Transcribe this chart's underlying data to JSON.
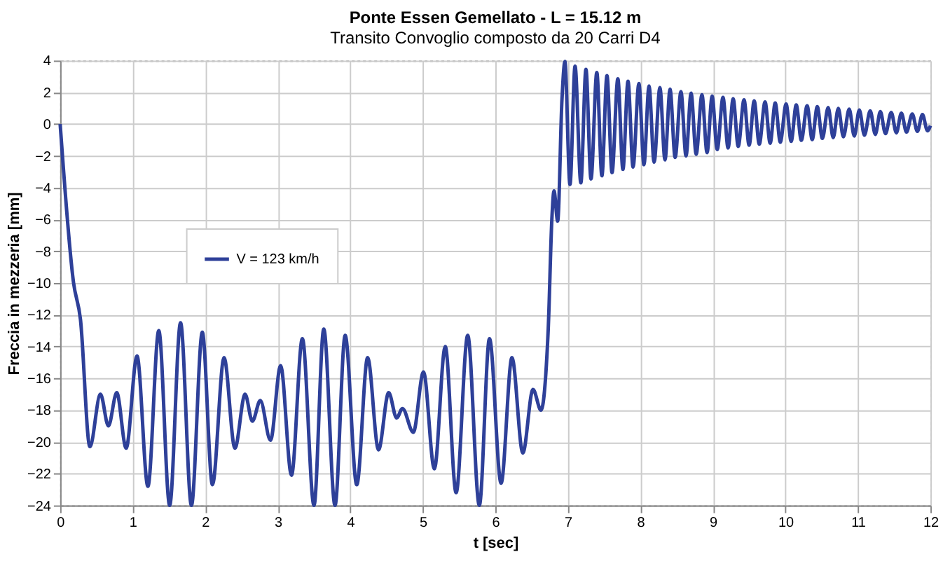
{
  "chart_data": {
    "type": "line",
    "title": "Ponte Essen Gemellato - L = 15.12 m",
    "subtitle": "Transito Convoglio composto da 20 Carri D4",
    "xlabel": "t [sec]",
    "ylabel": "Freccia in mezzeria [mm]",
    "x": [
      0,
      0.185,
      0.28,
      0.41,
      0.556,
      0.665,
      0.78,
      0.91,
      1.06,
      1.21,
      1.36,
      1.51,
      1.66,
      1.81,
      1.96,
      2.1,
      2.26,
      2.41,
      2.55,
      2.65,
      2.76,
      2.9,
      3.04,
      3.19,
      3.34,
      3.5,
      3.635,
      3.79,
      3.93,
      4.09,
      4.24,
      4.39,
      4.53,
      4.64,
      4.72,
      4.87,
      5.01,
      5.16,
      5.31,
      5.46,
      5.62,
      5.78,
      5.92,
      6.08,
      6.23,
      6.38,
      6.52,
      6.63,
      6.73,
      6.78,
      6.81,
      6.86,
      6.92,
      6.96,
      7.03,
      7.1,
      7.18,
      7.25,
      7.32,
      7.4,
      7.47,
      7.54,
      7.61,
      7.69,
      7.76,
      7.83,
      7.9,
      7.98,
      8.05,
      8.12,
      8.19,
      8.27,
      8.34,
      8.41,
      8.48,
      8.56,
      8.63,
      8.7,
      8.77,
      8.85,
      8.92,
      8.99,
      9.06,
      9.14,
      9.21,
      9.28,
      9.35,
      9.43,
      9.5,
      9.57,
      9.64,
      9.72,
      9.79,
      9.86,
      9.93,
      10.01,
      10.08,
      10.15,
      10.22,
      10.3,
      10.37,
      10.44,
      10.51,
      10.59,
      10.66,
      10.73,
      10.8,
      10.88,
      10.95,
      11.02,
      11.09,
      11.17,
      11.24,
      11.31,
      11.38,
      11.46,
      11.53,
      11.6,
      11.67,
      11.75,
      11.82,
      11.89,
      11.96,
      12
    ],
    "series": [
      {
        "name": "V = 123 km/h",
        "color": "#2e4099",
        "values": [
          0,
          -10,
          -12.3,
          -20.3,
          -17,
          -19,
          -16.9,
          -20.4,
          -14.6,
          -22.8,
          -13,
          -24,
          -12.5,
          -24,
          -13.1,
          -22.7,
          -14.7,
          -20.4,
          -17,
          -18.7,
          -17.4,
          -19.9,
          -15.2,
          -22.1,
          -13.5,
          -24,
          -12.9,
          -24,
          -13.3,
          -22.7,
          -14.7,
          -20.5,
          -16.9,
          -18.5,
          -17.9,
          -19.4,
          -15.6,
          -21.7,
          -14,
          -23.2,
          -13.3,
          -24,
          -13.5,
          -22.6,
          -14.7,
          -20.7,
          -16.7,
          -18,
          -12.9,
          -6,
          -4.2,
          -6.1,
          1.6,
          3.94,
          -3.8,
          3.65,
          -3.7,
          3.45,
          -3.45,
          3.25,
          -3.25,
          3.05,
          -3.05,
          2.85,
          -2.85,
          2.7,
          -2.7,
          2.55,
          -2.55,
          2.4,
          -2.4,
          2.3,
          -2.25,
          2.2,
          -2.1,
          2.05,
          -2.0,
          1.95,
          -1.9,
          1.85,
          -1.8,
          1.76,
          -1.6,
          1.68,
          -1.5,
          1.6,
          -1.4,
          1.53,
          -1.33,
          1.46,
          -1.26,
          1.4,
          -1.2,
          1.33,
          -1.14,
          1.27,
          -1.08,
          1.21,
          -1.02,
          1.15,
          -0.97,
          1.1,
          -0.9,
          1.04,
          -0.85,
          0.99,
          -0.8,
          0.94,
          -0.75,
          0.89,
          -0.7,
          0.84,
          -0.65,
          0.79,
          -0.6,
          0.74,
          -0.55,
          0.69,
          -0.5,
          0.64,
          -0.46,
          0.6,
          -0.42,
          -0.1
        ]
      }
    ],
    "xlim": [
      0,
      12
    ],
    "xticks": [
      0,
      1,
      2,
      3,
      4,
      5,
      6,
      7,
      8,
      9,
      10,
      11,
      12
    ],
    "ylim": [
      -24,
      4
    ],
    "yticks": [
      -24,
      -22,
      -20,
      -18,
      -16,
      -14,
      -12,
      -10,
      -8,
      -6,
      -4,
      -2,
      0,
      2,
      4
    ],
    "grid": true,
    "legend": "left",
    "line_style": "solid",
    "marker": "none"
  }
}
